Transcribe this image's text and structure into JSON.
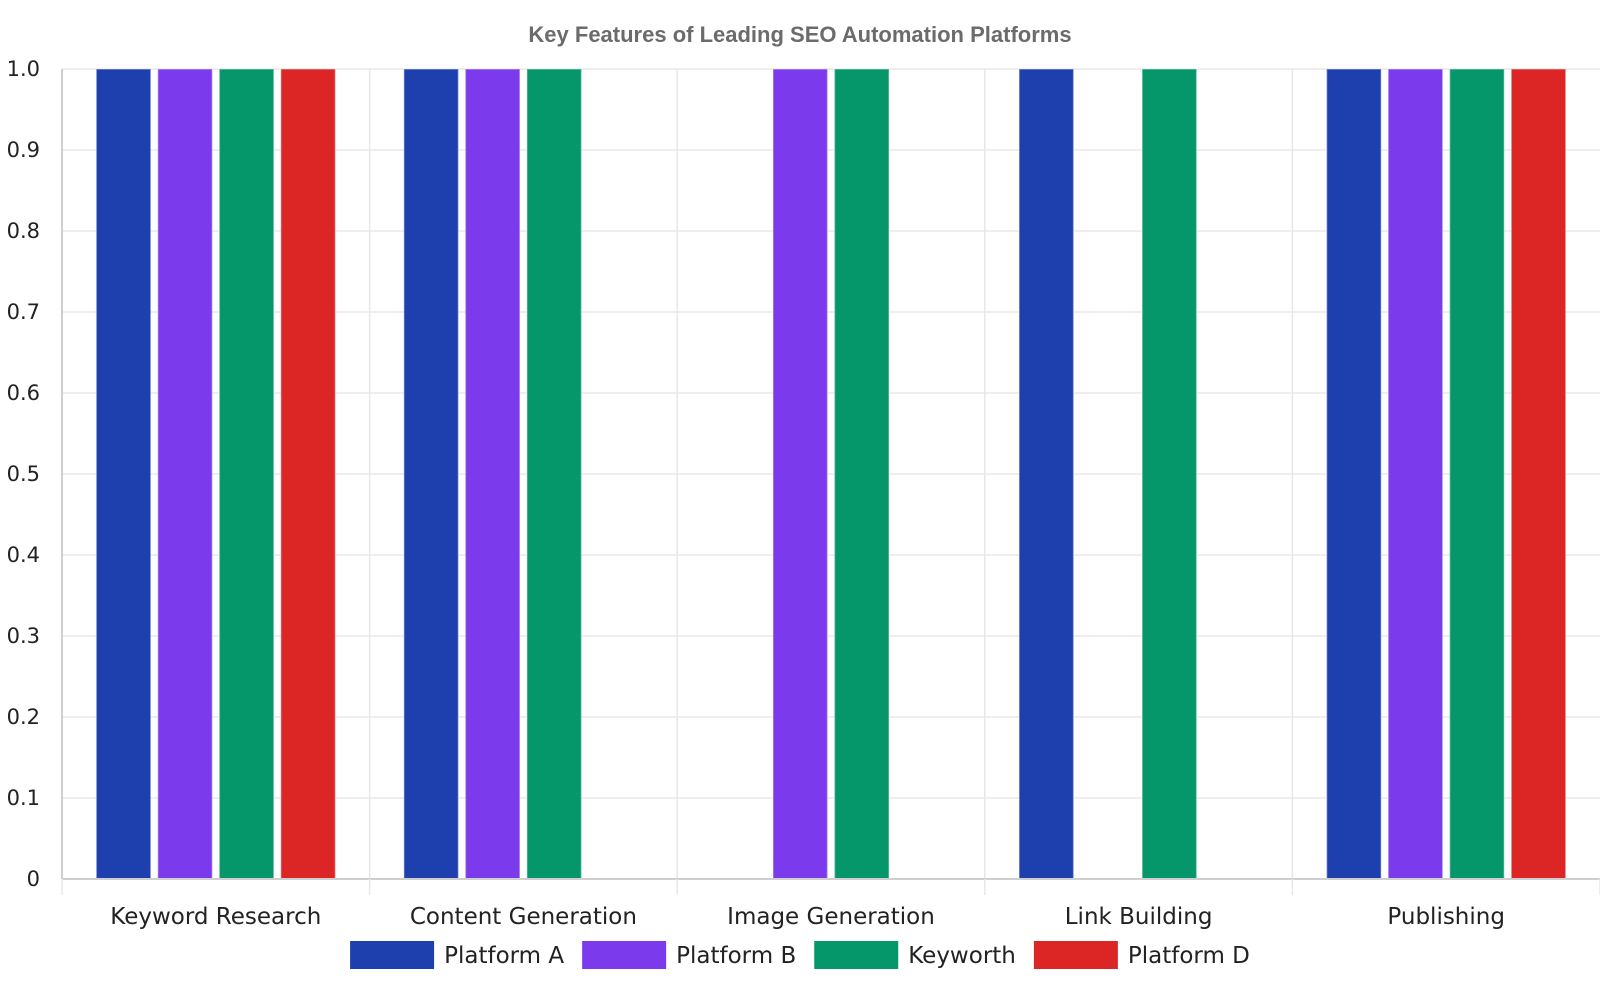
{
  "chart_data": {
    "type": "bar",
    "title": "Key Features of Leading SEO Automation Platforms",
    "xlabel": "",
    "ylabel": "",
    "ylim": [
      0,
      1.0
    ],
    "yticks": [
      "0",
      "0.1",
      "0.2",
      "0.3",
      "0.4",
      "0.5",
      "0.6",
      "0.7",
      "0.8",
      "0.9",
      "1.0"
    ],
    "categories": [
      "Keyword Research",
      "Content Generation",
      "Image Generation",
      "Link Building",
      "Publishing"
    ],
    "series": [
      {
        "name": "Platform A",
        "color": "#1e40af",
        "values": [
          1,
          1,
          0,
          1,
          1
        ]
      },
      {
        "name": "Platform B",
        "color": "#7c3aed",
        "values": [
          1,
          1,
          1,
          0,
          1
        ]
      },
      {
        "name": "Keyworth",
        "color": "#059669",
        "values": [
          1,
          1,
          1,
          1,
          1
        ]
      },
      {
        "name": "Platform D",
        "color": "#dc2626",
        "values": [
          1,
          0,
          0,
          0,
          1
        ]
      }
    ],
    "grid": true,
    "legend": "bottom"
  }
}
